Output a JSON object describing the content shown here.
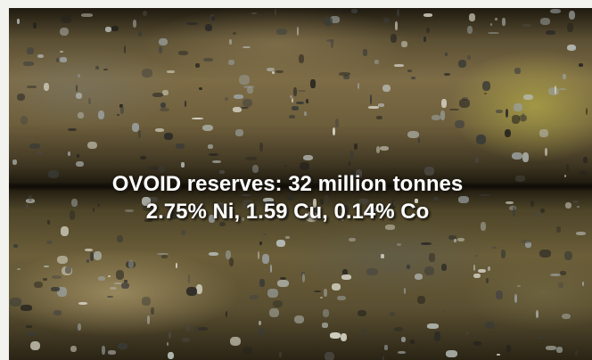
{
  "slide": {
    "photo_subject": "drill-core",
    "caption": {
      "line1": "OVOID reserves: 32 million tonnes",
      "line2": "2.75% Ni, 1.59 Cu, 0.14% Co"
    }
  }
}
